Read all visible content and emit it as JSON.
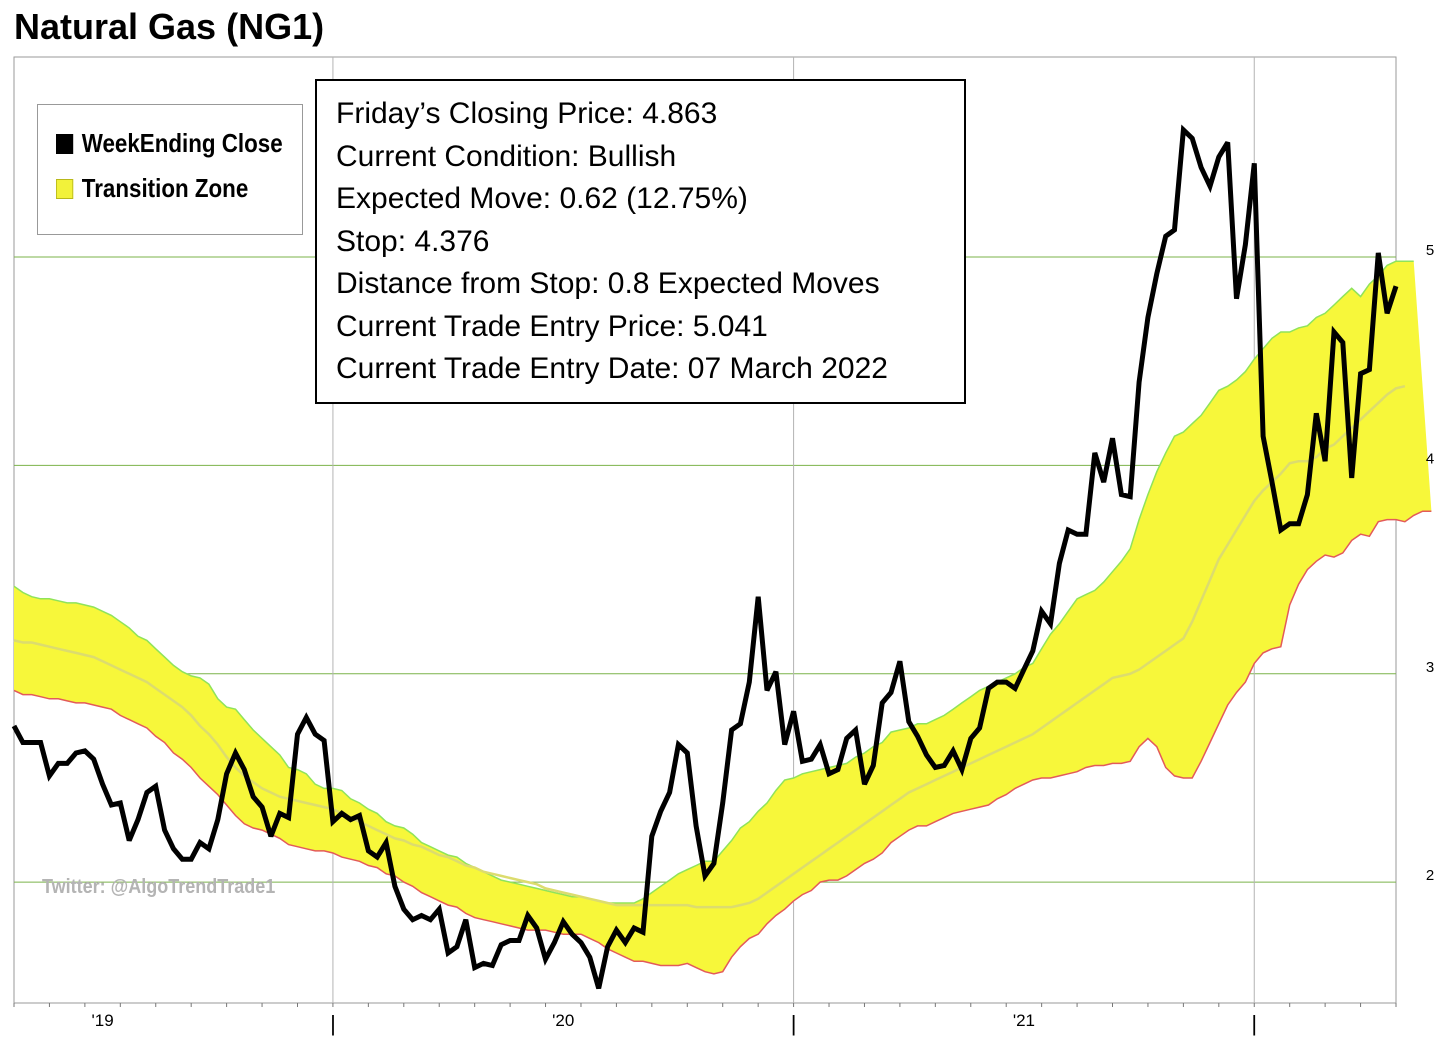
{
  "title": "Natural Gas (NG1)",
  "legend": [
    {
      "label": "WeekEnding Close",
      "color": "#000000"
    },
    {
      "label": "Transition Zone",
      "color": "#f2f23a"
    }
  ],
  "info_box": {
    "closing_price": "Friday’s Closing Price: 4.863",
    "condition": "Current Condition: Bullish",
    "expected_move": "Expected Move: 0.62 (12.75%)",
    "stop": "Stop: 4.376",
    "distance": "Distance from Stop: 0.8 Expected Moves",
    "entry_price": "Current Trade Entry Price: 5.041",
    "entry_date": "Current Trade Entry Date: 07 March 2022"
  },
  "watermark": "Twitter: @AlgoTrendTrade1",
  "colors": {
    "close_line": "#000000",
    "zone_fill": "#f7f73a",
    "zone_upper_edge": "#8fe35a",
    "zone_lower_edge": "#e35a5a",
    "midline": "#dcdc6e",
    "gridline": "#7bb34a"
  },
  "chart_data": {
    "type": "line",
    "title": "Natural Gas (NG1)",
    "xlabel": "",
    "ylabel": "",
    "x_start": "2018-09",
    "x_end": "2022-03",
    "x_ticks": [
      {
        "label": "'19",
        "week": 10
      },
      {
        "label": "|",
        "week": 36
      },
      {
        "label": "'20",
        "week": 62
      },
      {
        "label": "|",
        "week": 88
      },
      {
        "label": "'21",
        "week": 114
      },
      {
        "label": "|",
        "week": 140
      }
    ],
    "x_range": [
      0,
      156
    ],
    "y_ticks": [
      2,
      3,
      4,
      5
    ],
    "ylim": [
      1.42,
      5.96
    ],
    "grid": true,
    "legend_position": "top-left",
    "series": [
      {
        "name": "WeekEnding Close",
        "values": [
          2.75,
          2.67,
          2.67,
          2.67,
          2.51,
          2.57,
          2.57,
          2.62,
          2.63,
          2.59,
          2.47,
          2.37,
          2.38,
          2.2,
          2.3,
          2.43,
          2.46,
          2.25,
          2.16,
          2.11,
          2.11,
          2.19,
          2.16,
          2.3,
          2.52,
          2.62,
          2.54,
          2.41,
          2.36,
          2.22,
          2.33,
          2.31,
          2.71,
          2.79,
          2.71,
          2.68,
          2.29,
          2.33,
          2.3,
          2.32,
          2.15,
          2.12,
          2.19,
          1.98,
          1.87,
          1.82,
          1.84,
          1.82,
          1.87,
          1.66,
          1.69,
          1.82,
          1.59,
          1.61,
          1.6,
          1.7,
          1.72,
          1.72,
          1.84,
          1.78,
          1.63,
          1.71,
          1.81,
          1.75,
          1.71,
          1.64,
          1.49,
          1.69,
          1.77,
          1.71,
          1.78,
          1.76,
          2.22,
          2.34,
          2.43,
          2.66,
          2.62,
          2.27,
          2.03,
          2.09,
          2.38,
          2.73,
          2.76,
          2.96,
          3.37,
          2.92,
          3.01,
          2.66,
          2.82,
          2.58,
          2.59,
          2.66,
          2.52,
          2.54,
          2.69,
          2.73,
          2.47,
          2.56,
          2.86,
          2.91,
          3.06,
          2.77,
          2.7,
          2.61,
          2.55,
          2.56,
          2.63,
          2.54,
          2.69,
          2.74,
          2.93,
          2.96,
          2.96,
          2.93,
          3.02,
          3.11,
          3.3,
          3.24,
          3.53,
          3.69,
          3.67,
          3.67,
          4.06,
          3.92,
          4.13,
          3.86,
          3.85,
          4.4,
          4.71,
          4.92,
          5.1,
          5.13,
          5.61,
          5.57,
          5.43,
          5.34,
          5.48,
          5.55,
          4.8,
          5.06,
          5.45,
          4.14,
          3.92,
          3.69,
          3.72,
          3.72,
          3.86,
          4.25,
          4.02,
          4.64,
          4.59,
          3.94,
          4.44,
          4.46,
          5.02,
          4.73,
          4.86
        ],
        "color": "#000000"
      },
      {
        "name": "Transition Zone upper",
        "values": [
          3.42,
          3.39,
          3.37,
          3.36,
          3.36,
          3.35,
          3.34,
          3.34,
          3.33,
          3.32,
          3.3,
          3.28,
          3.25,
          3.22,
          3.18,
          3.16,
          3.12,
          3.08,
          3.04,
          3.01,
          2.99,
          2.98,
          2.95,
          2.88,
          2.84,
          2.83,
          2.78,
          2.73,
          2.69,
          2.65,
          2.61,
          2.55,
          2.54,
          2.52,
          2.47,
          2.45,
          2.45,
          2.44,
          2.4,
          2.38,
          2.35,
          2.33,
          2.29,
          2.27,
          2.26,
          2.23,
          2.19,
          2.17,
          2.15,
          2.13,
          2.12,
          2.09,
          2.07,
          2.05,
          2.03,
          2.01,
          2.0,
          1.99,
          1.98,
          1.97,
          1.96,
          1.95,
          1.94,
          1.93,
          1.93,
          1.92,
          1.91,
          1.9,
          1.9,
          1.9,
          1.9,
          1.92,
          1.95,
          1.98,
          2.01,
          2.04,
          2.06,
          2.08,
          2.1,
          2.1,
          2.15,
          2.2,
          2.26,
          2.29,
          2.34,
          2.38,
          2.44,
          2.49,
          2.5,
          2.52,
          2.53,
          2.54,
          2.55,
          2.56,
          2.57,
          2.6,
          2.62,
          2.65,
          2.67,
          2.72,
          2.73,
          2.74,
          2.76,
          2.76,
          2.78,
          2.8,
          2.83,
          2.86,
          2.89,
          2.92,
          2.94,
          2.96,
          2.98,
          3.0,
          3.03,
          3.05,
          3.12,
          3.19,
          3.24,
          3.3,
          3.36,
          3.38,
          3.4,
          3.44,
          3.49,
          3.54,
          3.6,
          3.74,
          3.86,
          3.97,
          4.06,
          4.14,
          4.16,
          4.2,
          4.24,
          4.3,
          4.36,
          4.38,
          4.41,
          4.45,
          4.51,
          4.56,
          4.61,
          4.64,
          4.64,
          4.66,
          4.67,
          4.71,
          4.73,
          4.77,
          4.81,
          4.85,
          4.81,
          4.87,
          4.91,
          4.96,
          4.98,
          4.98,
          4.98
        ],
        "color": "#8fe35a"
      },
      {
        "name": "Transition Zone midline",
        "values": [
          3.16,
          3.15,
          3.15,
          3.14,
          3.13,
          3.12,
          3.11,
          3.1,
          3.09,
          3.08,
          3.06,
          3.04,
          3.02,
          3.0,
          2.98,
          2.96,
          2.93,
          2.9,
          2.87,
          2.84,
          2.8,
          2.75,
          2.71,
          2.66,
          2.6,
          2.55,
          2.51,
          2.48,
          2.45,
          2.43,
          2.41,
          2.4,
          2.39,
          2.38,
          2.37,
          2.36,
          2.35,
          2.33,
          2.31,
          2.29,
          2.27,
          2.25,
          2.23,
          2.21,
          2.2,
          2.18,
          2.17,
          2.15,
          2.13,
          2.12,
          2.1,
          2.08,
          2.07,
          2.05,
          2.04,
          2.03,
          2.02,
          2.01,
          2.0,
          1.99,
          1.97,
          1.96,
          1.95,
          1.94,
          1.93,
          1.92,
          1.91,
          1.9,
          1.89,
          1.89,
          1.89,
          1.89,
          1.89,
          1.89,
          1.89,
          1.89,
          1.89,
          1.88,
          1.88,
          1.88,
          1.88,
          1.88,
          1.89,
          1.9,
          1.92,
          1.95,
          1.98,
          2.01,
          2.04,
          2.07,
          2.1,
          2.13,
          2.16,
          2.19,
          2.22,
          2.25,
          2.28,
          2.31,
          2.34,
          2.37,
          2.4,
          2.43,
          2.45,
          2.47,
          2.49,
          2.51,
          2.53,
          2.55,
          2.57,
          2.59,
          2.61,
          2.63,
          2.65,
          2.67,
          2.69,
          2.71,
          2.74,
          2.77,
          2.8,
          2.83,
          2.86,
          2.89,
          2.92,
          2.95,
          2.98,
          2.99,
          3.0,
          3.02,
          3.05,
          3.08,
          3.11,
          3.14,
          3.17,
          3.25,
          3.35,
          3.45,
          3.55,
          3.62,
          3.69,
          3.76,
          3.83,
          3.88,
          3.92,
          3.96,
          4.01,
          4.02,
          4.02,
          4.04,
          4.08,
          4.1,
          4.14,
          4.18,
          4.22,
          4.26,
          4.3,
          4.34,
          4.37,
          4.38
        ],
        "color": "#dcdc6e"
      },
      {
        "name": "Transition Zone lower",
        "values": [
          2.92,
          2.9,
          2.9,
          2.89,
          2.88,
          2.88,
          2.87,
          2.86,
          2.86,
          2.85,
          2.84,
          2.83,
          2.8,
          2.78,
          2.76,
          2.74,
          2.7,
          2.67,
          2.62,
          2.59,
          2.55,
          2.5,
          2.46,
          2.42,
          2.37,
          2.32,
          2.28,
          2.26,
          2.25,
          2.23,
          2.21,
          2.18,
          2.17,
          2.16,
          2.15,
          2.15,
          2.14,
          2.12,
          2.11,
          2.1,
          2.08,
          2.07,
          2.04,
          2.03,
          2.0,
          1.98,
          1.95,
          1.93,
          1.91,
          1.89,
          1.88,
          1.85,
          1.83,
          1.82,
          1.81,
          1.8,
          1.79,
          1.78,
          1.77,
          1.77,
          1.77,
          1.76,
          1.75,
          1.75,
          1.75,
          1.73,
          1.71,
          1.68,
          1.66,
          1.64,
          1.62,
          1.62,
          1.61,
          1.6,
          1.6,
          1.6,
          1.61,
          1.59,
          1.57,
          1.56,
          1.57,
          1.64,
          1.69,
          1.73,
          1.75,
          1.8,
          1.84,
          1.87,
          1.91,
          1.94,
          1.96,
          2.0,
          2.01,
          2.01,
          2.03,
          2.06,
          2.09,
          2.11,
          2.14,
          2.19,
          2.22,
          2.25,
          2.27,
          2.27,
          2.29,
          2.31,
          2.33,
          2.34,
          2.35,
          2.36,
          2.37,
          2.4,
          2.42,
          2.45,
          2.47,
          2.49,
          2.5,
          2.5,
          2.51,
          2.52,
          2.53,
          2.55,
          2.56,
          2.56,
          2.57,
          2.57,
          2.58,
          2.65,
          2.69,
          2.65,
          2.55,
          2.51,
          2.5,
          2.5,
          2.58,
          2.67,
          2.76,
          2.85,
          2.91,
          2.96,
          3.05,
          3.1,
          3.12,
          3.13,
          3.33,
          3.43,
          3.5,
          3.54,
          3.57,
          3.56,
          3.58,
          3.64,
          3.67,
          3.66,
          3.73,
          3.74,
          3.74,
          3.73,
          3.76,
          3.78,
          3.78
        ],
        "color": "#e35a5a"
      }
    ]
  }
}
